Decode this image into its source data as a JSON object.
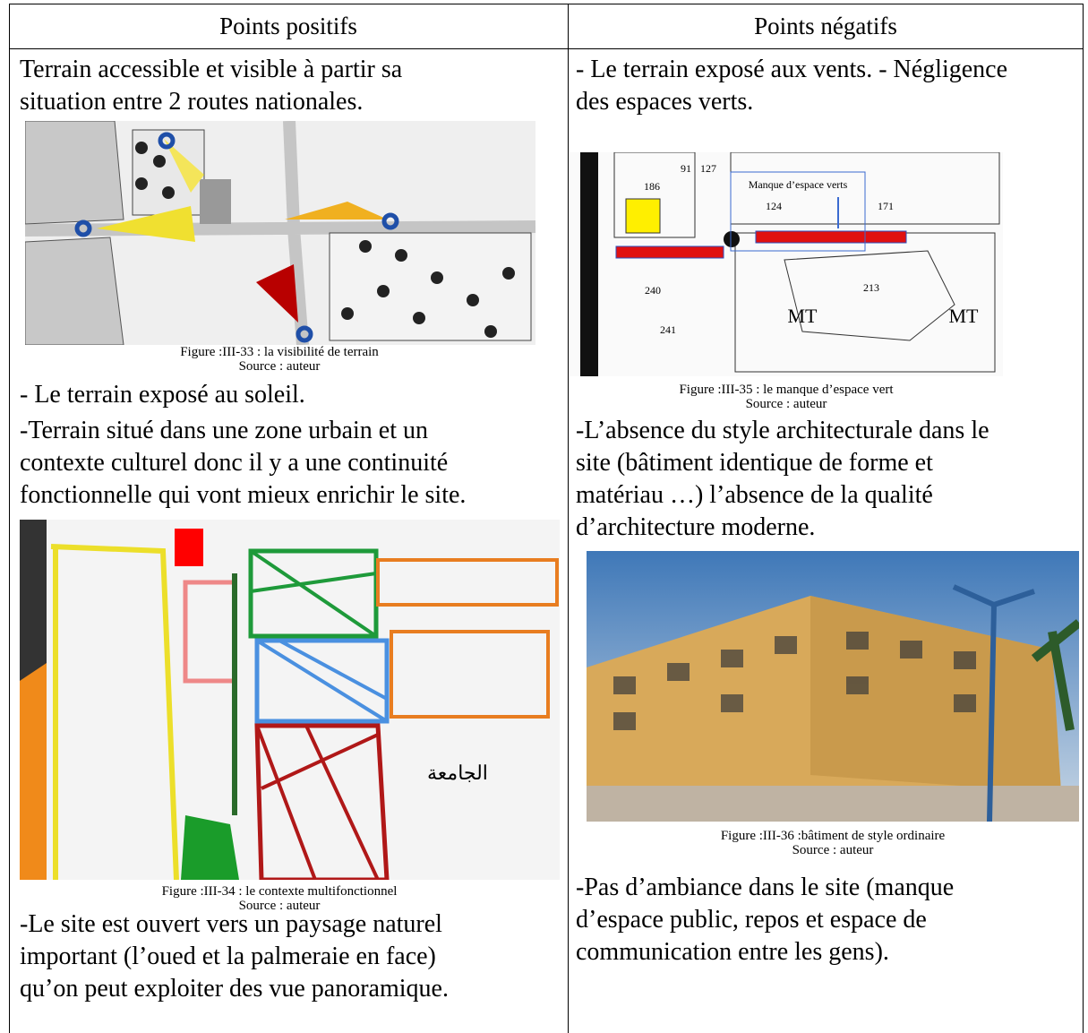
{
  "header": {
    "left": "Points positifs",
    "right": "Points négatifs"
  },
  "left": {
    "p1": [
      "Terrain accessible et visible à partir sa",
      "situation entre 2 routes nationales."
    ],
    "fig33": {
      "caption": "Figure :III-33 : la visibilité de terrain",
      "source": "Source : auteur"
    },
    "p2": [
      "- Le terrain exposé au soleil."
    ],
    "p3": [
      "-Terrain situé dans une zone urbain et un",
      "contexte culturel donc il y a une continuité",
      "fonctionnelle qui vont mieux enrichir le site."
    ],
    "fig34": {
      "label": "الجامعة",
      "caption": "Figure :III-34 : le contexte multifonctionnel",
      "source": "Source : auteur"
    },
    "p4": [
      "-Le site est ouvert vers un paysage naturel",
      "important (l’oued et la palmeraie en face)",
      "qu’on peut exploiter des vue panoramique."
    ]
  },
  "right": {
    "p1": [
      "- Le terrain exposé aux vents. - Négligence",
      "des espaces verts."
    ],
    "fig35": {
      "annotation": "Manque d’espace verts",
      "labels": [
        "186",
        "91",
        "127",
        "124",
        "171",
        "240",
        "213",
        "241",
        "MT",
        "MT"
      ],
      "caption": "Figure :III-35 : le manque d’espace vert",
      "source": "Source : auteur"
    },
    "p2": [
      "-L’absence du style architecturale dans le",
      "site (bâtiment identique de forme et",
      "matériau …) l’absence de la qualité",
      "d’architecture moderne."
    ],
    "fig36": {
      "caption": "Figure :III-36 :bâtiment de style ordinaire",
      "source": "Source : auteur"
    },
    "p3": [
      "-Pas d’ambiance dans le site (manque",
      "d’espace public, repos et espace de",
      "communication entre les gens)."
    ]
  }
}
